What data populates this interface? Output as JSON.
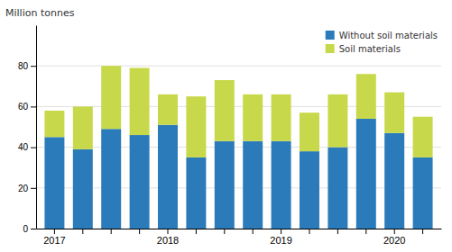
{
  "chart_data": {
    "type": "bar",
    "stacked": true,
    "y_label": "Million tonnes",
    "categories": [
      "2017",
      null,
      null,
      null,
      "2018",
      null,
      null,
      null,
      "2019",
      null,
      null,
      null,
      "2020",
      null
    ],
    "series": [
      {
        "name": "Without soil materials",
        "color": "#2b7bba",
        "values": [
          45,
          39,
          49,
          46,
          51,
          35,
          43,
          43,
          43,
          38,
          40,
          54,
          47,
          35
        ]
      },
      {
        "name": "Soil materials",
        "color": "#c8d84b",
        "values": [
          13,
          21,
          31,
          33,
          15,
          30,
          30,
          23,
          23,
          19,
          26,
          22,
          20,
          20
        ]
      }
    ],
    "ylim": [
      0,
      100
    ],
    "yticks": [
      0,
      20,
      40,
      60,
      80
    ],
    "grid": true,
    "legend": "top-right"
  }
}
